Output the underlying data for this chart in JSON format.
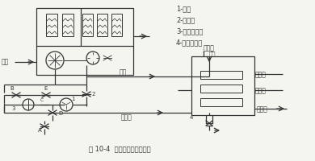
{
  "title": "图 10-4  自流回水系统示意图",
  "legend": [
    "1-水泵",
    "2-逆止阀",
    "3-三通混合阀",
    "4-主机换热器"
  ],
  "labels": {
    "air": "空气",
    "return_water": "回水",
    "cold_water": "冷冻水",
    "water_line": "水线",
    "tap_water": "自来水",
    "refrigerant": "制冷剂",
    "sewer": "下水道",
    "B": "B",
    "E": "E",
    "C": "C",
    "D": "D",
    "A": "A",
    "num1": "1",
    "num2": "2",
    "num3": "3",
    "num4": "4"
  },
  "bg_color": "#f5f5f0",
  "line_color": "#333333",
  "fig_width": 3.9,
  "fig_height": 2.0,
  "dpi": 100
}
